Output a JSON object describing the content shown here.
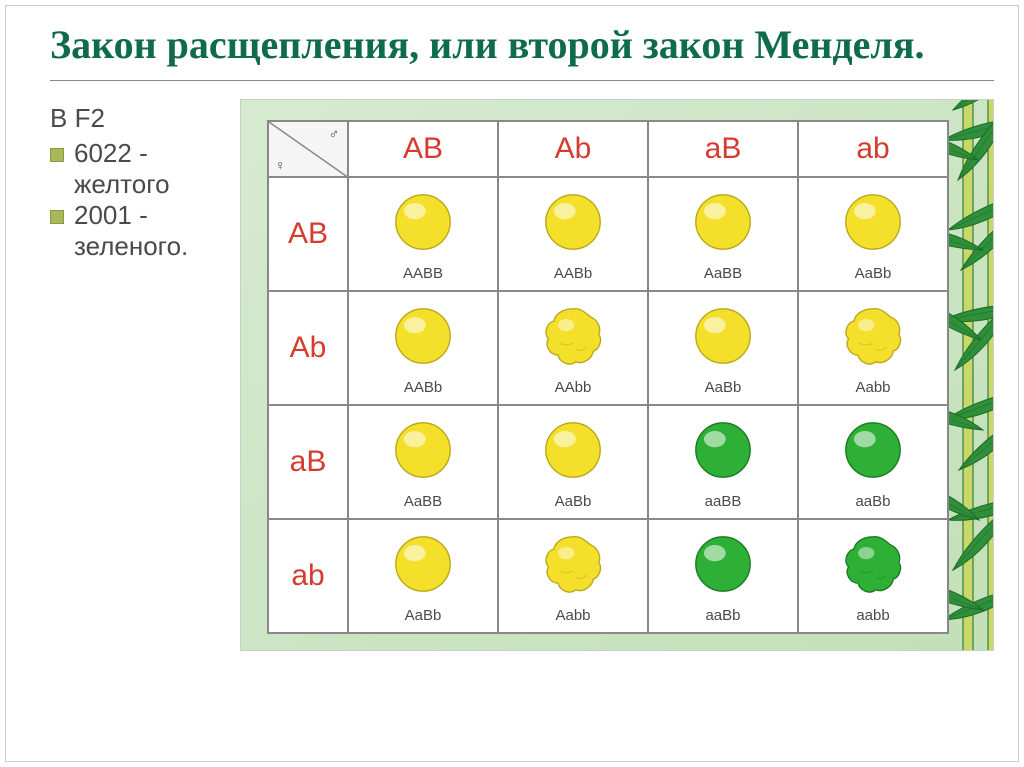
{
  "title_color": "#0f6b4a",
  "header_color": "#d63b2f",
  "cell_label_color": "#4a4a4a",
  "bg_gradient_from": "#d6ead0",
  "bg_gradient_to": "#c2e0b8",
  "yellow_fill": "#f4e02a",
  "yellow_stroke": "#b8a818",
  "green_fill": "#2db035",
  "green_stroke": "#1a7a22",
  "leaf_fill": "#2f8f3a",
  "leaf_stroke": "#1c6b25",
  "bamboo_fill": "#c9d86a",
  "title": "Закон расщепления, или второй закон Менделя.",
  "sidebar": {
    "intro": "В F2",
    "items": [
      {
        "count": "6022 -",
        "label": "желтого"
      },
      {
        "count": " 2001 -",
        "label": "зеленого."
      }
    ]
  },
  "punnett": {
    "gametes": [
      "AB",
      "Ab",
      "aB",
      "ab"
    ],
    "cells": [
      [
        {
          "g": "AABB",
          "shape": "smooth",
          "color": "yellow"
        },
        {
          "g": "AABb",
          "shape": "smooth",
          "color": "yellow"
        },
        {
          "g": "AaBB",
          "shape": "smooth",
          "color": "yellow"
        },
        {
          "g": "AaBb",
          "shape": "smooth",
          "color": "yellow"
        }
      ],
      [
        {
          "g": "AABb",
          "shape": "smooth",
          "color": "yellow"
        },
        {
          "g": "AAbb",
          "shape": "wrinkled",
          "color": "yellow"
        },
        {
          "g": "AaBb",
          "shape": "smooth",
          "color": "yellow"
        },
        {
          "g": "Aabb",
          "shape": "wrinkled",
          "color": "yellow"
        }
      ],
      [
        {
          "g": "AaBB",
          "shape": "smooth",
          "color": "yellow"
        },
        {
          "g": "AaBb",
          "shape": "smooth",
          "color": "yellow"
        },
        {
          "g": "aaBB",
          "shape": "smooth",
          "color": "green"
        },
        {
          "g": "aaBb",
          "shape": "smooth",
          "color": "green"
        }
      ],
      [
        {
          "g": "AaBb",
          "shape": "smooth",
          "color": "yellow"
        },
        {
          "g": "Aabb",
          "shape": "wrinkled",
          "color": "yellow"
        },
        {
          "g": "aaBb",
          "shape": "smooth",
          "color": "green"
        },
        {
          "g": "aabb",
          "shape": "wrinkled",
          "color": "green"
        }
      ]
    ]
  }
}
